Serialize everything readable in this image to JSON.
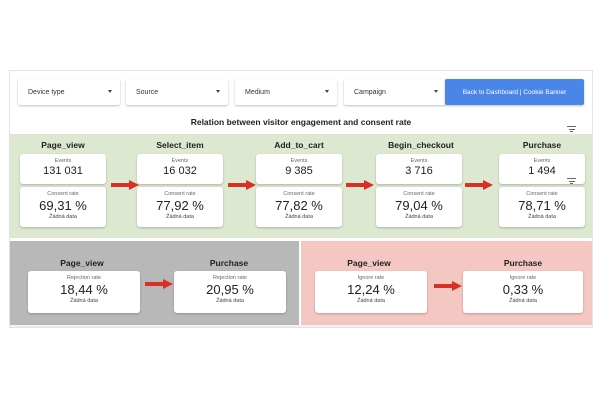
{
  "filters": {
    "device_type": "Device type",
    "source": "Source",
    "medium": "Medium",
    "campaign": "Campaign",
    "back_button": "Back to Dashboard | Cookie Banner"
  },
  "title": "Relation between visitor engagement and consent rate",
  "funnel": [
    {
      "name": "Page_view",
      "events_label": "Events",
      "events": "131 031",
      "rate_label": "Consent rate",
      "rate": "69,31 %",
      "note": "Žádná data"
    },
    {
      "name": "Select_item",
      "events_label": "Events",
      "events": "16 032",
      "rate_label": "Consent rate",
      "rate": "77,92 %",
      "note": "Žádná data"
    },
    {
      "name": "Add_to_cart",
      "events_label": "Events",
      "events": "9 385",
      "rate_label": "Consent rate",
      "rate": "77,82 %",
      "note": "Žádná data"
    },
    {
      "name": "Begin_checkout",
      "events_label": "Events",
      "events": "3 716",
      "rate_label": "Consent rate",
      "rate": "79,04 %",
      "note": "Žádná data"
    },
    {
      "name": "Purchase",
      "events_label": "Events",
      "events": "1 494",
      "rate_label": "Consent rate",
      "rate": "78,71 %",
      "note": "Žádná data"
    }
  ],
  "rejection": [
    {
      "name": "Page_view",
      "label": "Rejection rate",
      "value": "18,44 %",
      "note": "Žádná data"
    },
    {
      "name": "Purchase",
      "label": "Rejection rate",
      "value": "20,95 %",
      "note": "Žádná data"
    }
  ],
  "ignore": [
    {
      "name": "Page_view",
      "label": "Ignore rate",
      "value": "12,24 %",
      "note": "Žádná data"
    },
    {
      "name": "Purchase",
      "label": "Ignore rate",
      "value": "0,33 %",
      "note": "Žádná data"
    }
  ],
  "colors": {
    "accent": "#4a86e8",
    "funnel_band": "#dce8d0",
    "rejection_band": "#b8b8b8",
    "ignore_band": "#f4c7c3",
    "arrow": "#d93025"
  },
  "icons": {
    "dropdown": "caret-down-icon",
    "filter": "filter-icon",
    "arrow": "arrow-right-icon"
  }
}
